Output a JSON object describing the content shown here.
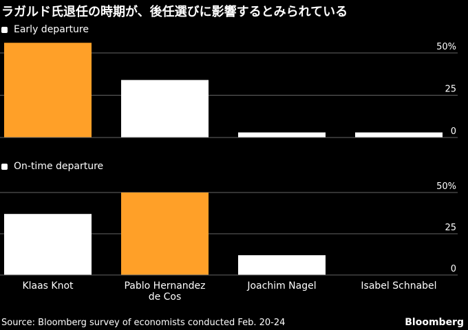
{
  "title": "ラガルド氏退任の時期が、後任選びに影響するとみられている",
  "footer": {
    "source": "Source: Bloomberg survey of economists conducted Feb. 20-24",
    "brand": "Bloomberg"
  },
  "colors": {
    "background": "#000000",
    "bar_default": "#ffffff",
    "bar_highlight": "#ffa028",
    "gridline": "#666666",
    "text": "#ffffff"
  },
  "chart_data": [
    {
      "type": "bar",
      "legend": "Early departure",
      "categories": [
        "Klaas Knot",
        "Pablo Hernandez de Cos",
        "Joachim Nagel",
        "Isabel Schnabel"
      ],
      "category_label_lines": [
        [
          "Klaas Knot"
        ],
        [
          "Pablo Hernandez",
          "de Cos"
        ],
        [
          "Joachim Nagel"
        ],
        [
          "Isabel Schnabel"
        ]
      ],
      "values": [
        56,
        34,
        3,
        3
      ],
      "highlight": [
        true,
        false,
        false,
        false
      ],
      "ylim": [
        0,
        50
      ],
      "yticks": [
        0,
        25,
        50
      ],
      "ytick_labels": [
        "0",
        "25",
        "50%"
      ],
      "grid": true,
      "axis_side": "right",
      "legend_position": "top-left"
    },
    {
      "type": "bar",
      "legend": "On-time departure",
      "categories": [
        "Klaas Knot",
        "Pablo Hernandez de Cos",
        "Joachim Nagel",
        "Isabel Schnabel"
      ],
      "category_label_lines": [
        [
          "Klaas Knot"
        ],
        [
          "Pablo Hernandez",
          "de Cos"
        ],
        [
          "Joachim Nagel"
        ],
        [
          "Isabel Schnabel"
        ]
      ],
      "values": [
        37,
        50,
        12,
        0
      ],
      "highlight": [
        false,
        true,
        false,
        false
      ],
      "ylim": [
        0,
        50
      ],
      "yticks": [
        0,
        25,
        50
      ],
      "ytick_labels": [
        "0",
        "25",
        "50%"
      ],
      "grid": true,
      "axis_side": "right",
      "legend_position": "top-left"
    }
  ]
}
